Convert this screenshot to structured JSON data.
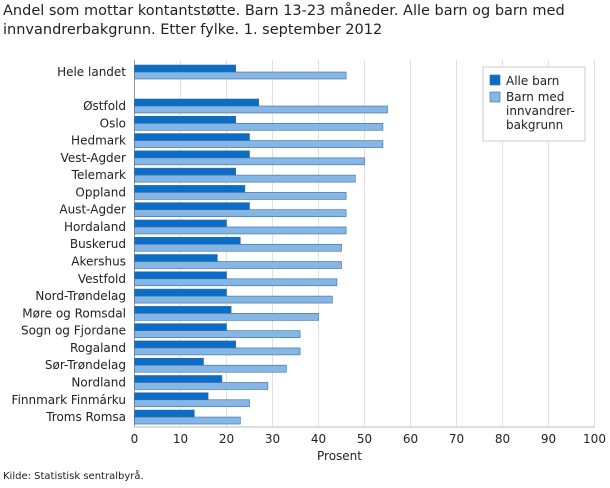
{
  "title": "Andel som mottar kontantstøtte. Barn 13-23 måneder. Alle barn og barn med innvandrerbakgrunn. Etter fylke. 1. september 2012",
  "source": "Kilde: Statistisk sentralbyrå.",
  "colors": {
    "alle_barn": "#0a6dc7",
    "innvandrer": "#84b6e6",
    "grid": "#e0e0e0"
  },
  "chart_data": {
    "type": "bar",
    "orientation": "horizontal",
    "title": "Andel som mottar kontantstøtte. Barn 13-23 måneder. Alle barn og barn med innvandrerbakgrunn. Etter fylke. 1. september 2012",
    "xlabel": "Prosent",
    "xlim": [
      0,
      100
    ],
    "xticks": [
      0,
      10,
      20,
      30,
      40,
      50,
      60,
      70,
      80,
      90,
      100
    ],
    "grid": true,
    "legend_position": "top-right",
    "categories": [
      "Hele landet",
      "Østfold",
      "Oslo",
      "Hedmark",
      "Vest-Agder",
      "Telemark",
      "Oppland",
      "Aust-Agder",
      "Hordaland",
      "Buskerud",
      "Akershus",
      "Vestfold",
      "Nord-Trøndelag",
      "Møre og Romsdal",
      "Sogn og Fjordane",
      "Rogaland",
      "Sør-Trøndelag",
      "Nordland",
      "Finnmark Finmárku",
      "Troms Romsa"
    ],
    "series": [
      {
        "name": "Alle barn",
        "values": [
          22,
          27,
          22,
          25,
          25,
          22,
          24,
          25,
          20,
          23,
          18,
          20,
          20,
          21,
          20,
          22,
          15,
          19,
          16,
          13
        ]
      },
      {
        "name": "Barn med innvandrer-bakgrunn",
        "values": [
          46,
          55,
          54,
          54,
          50,
          48,
          46,
          46,
          46,
          45,
          45,
          44,
          43,
          40,
          36,
          36,
          33,
          29,
          25,
          23
        ]
      }
    ]
  }
}
